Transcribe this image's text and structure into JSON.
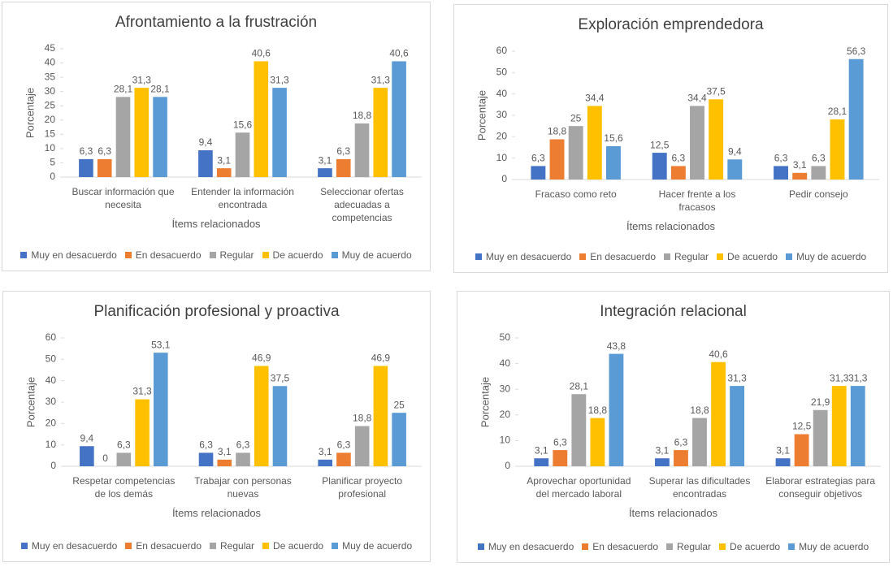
{
  "chart_data": [
    {
      "type": "bar",
      "title": "Afrontamiento a la frustración",
      "y_label": "Porcentaje",
      "x_label": "Ítems relacionados",
      "categories": [
        "Buscar información que necesita",
        "Entender la información encontrada",
        "Seleccionar ofertas adecuadas a competencias"
      ],
      "ylim": [
        0,
        45
      ],
      "yticks": [
        0,
        5,
        10,
        15,
        20,
        25,
        30,
        35,
        40,
        45
      ],
      "legend": "bottom",
      "series": [
        {
          "name": "Muy en desacuerdo",
          "color": "#4472c4",
          "values": [
            6.3,
            9.4,
            3.1
          ],
          "value_labels": [
            "6,3",
            "9,4",
            "3,1"
          ]
        },
        {
          "name": "En desacuerdo",
          "color": "#ed7d31",
          "values": [
            6.3,
            3.1,
            6.3
          ],
          "value_labels": [
            "6,3",
            "3,1",
            "6,3"
          ]
        },
        {
          "name": "Regular",
          "color": "#a5a5a5",
          "values": [
            28.1,
            15.6,
            18.8
          ],
          "value_labels": [
            "28,1",
            "15,6",
            "18,8"
          ]
        },
        {
          "name": "De acuerdo",
          "color": "#ffc000",
          "values": [
            31.3,
            40.6,
            31.3
          ],
          "value_labels": [
            "31,3",
            "40,6",
            "31,3"
          ]
        },
        {
          "name": "Muy de acuerdo",
          "color": "#5b9bd5",
          "values": [
            28.1,
            31.3,
            40.6
          ],
          "value_labels": [
            "28,1",
            "31,3",
            "40,6"
          ]
        }
      ]
    },
    {
      "type": "bar",
      "title": "Exploración emprendedora",
      "y_label": "Porcentaje",
      "x_label": "Ítems relacionados",
      "categories": [
        "Fracaso como reto",
        "Hacer frente a los fracasos",
        "Pedir consejo"
      ],
      "ylim": [
        0,
        60
      ],
      "yticks": [
        0,
        10,
        20,
        30,
        40,
        50,
        60
      ],
      "legend": "bottom",
      "series": [
        {
          "name": "Muy en desacuerdo",
          "color": "#4472c4",
          "values": [
            6.3,
            12.5,
            6.3
          ],
          "value_labels": [
            "6,3",
            "12,5",
            "6,3"
          ]
        },
        {
          "name": "En desacuerdo",
          "color": "#ed7d31",
          "values": [
            18.8,
            6.3,
            3.1
          ],
          "value_labels": [
            "18,8",
            "6,3",
            "3,1"
          ]
        },
        {
          "name": "Regular",
          "color": "#a5a5a5",
          "values": [
            25,
            34.4,
            6.3
          ],
          "value_labels": [
            "25",
            "34,4",
            "6,3"
          ]
        },
        {
          "name": "De acuerdo",
          "color": "#ffc000",
          "values": [
            34.4,
            37.5,
            28.1
          ],
          "value_labels": [
            "34,4",
            "37,5",
            "28,1"
          ]
        },
        {
          "name": "Muy de acuerdo",
          "color": "#5b9bd5",
          "values": [
            15.6,
            9.4,
            56.3
          ],
          "value_labels": [
            "15,6",
            "9,4",
            "56,3"
          ]
        }
      ]
    },
    {
      "type": "bar",
      "title": "Planificación profesional y proactiva",
      "y_label": "Porcentaje",
      "x_label": "Ítems relacionados",
      "categories": [
        "Respetar competencias de los demás",
        "Trabajar con personas nuevas",
        "Planificar proyecto profesional"
      ],
      "ylim": [
        0,
        60
      ],
      "yticks": [
        0,
        10,
        20,
        30,
        40,
        50,
        60
      ],
      "legend": "bottom",
      "series": [
        {
          "name": "Muy en desacuerdo",
          "color": "#4472c4",
          "values": [
            9.4,
            6.3,
            3.1
          ],
          "value_labels": [
            "9,4",
            "6,3",
            "3,1"
          ]
        },
        {
          "name": "En desacuerdo",
          "color": "#ed7d31",
          "values": [
            0,
            3.1,
            6.3
          ],
          "value_labels": [
            "0",
            "3,1",
            "6,3"
          ]
        },
        {
          "name": "Regular",
          "color": "#a5a5a5",
          "values": [
            6.3,
            6.3,
            18.8
          ],
          "value_labels": [
            "6,3",
            "6,3",
            "18,8"
          ]
        },
        {
          "name": "De acuerdo",
          "color": "#ffc000",
          "values": [
            31.3,
            46.9,
            46.9
          ],
          "value_labels": [
            "31,3",
            "46,9",
            "46,9"
          ]
        },
        {
          "name": "Muy de acuerdo",
          "color": "#5b9bd5",
          "values": [
            53.1,
            37.5,
            25
          ],
          "value_labels": [
            "53,1",
            "37,5",
            "25"
          ]
        }
      ]
    },
    {
      "type": "bar",
      "title": "Integración relacional",
      "y_label": "Porcentaje",
      "x_label": "Ítems relacionados",
      "categories": [
        "Aprovechar oportunidad del mercado laboral",
        "Superar las dificultades encontradas",
        "Elaborar estrategias para conseguir objetivos"
      ],
      "ylim": [
        0,
        50
      ],
      "yticks": [
        0,
        10,
        20,
        30,
        40,
        50
      ],
      "legend": "bottom",
      "series": [
        {
          "name": "Muy en desacuerdo",
          "color": "#4472c4",
          "values": [
            3.1,
            3.1,
            3.1
          ],
          "value_labels": [
            "3,1",
            "3,1",
            "3,1"
          ]
        },
        {
          "name": "En desacuerdo",
          "color": "#ed7d31",
          "values": [
            6.3,
            6.3,
            12.5
          ],
          "value_labels": [
            "6,3",
            "6,3",
            "12,5"
          ]
        },
        {
          "name": "Regular",
          "color": "#a5a5a5",
          "values": [
            28.1,
            18.8,
            21.9
          ],
          "value_labels": [
            "28,1",
            "18,8",
            "21,9"
          ]
        },
        {
          "name": "De acuerdo",
          "color": "#ffc000",
          "values": [
            18.8,
            40.6,
            31.3
          ],
          "value_labels": [
            "18,8",
            "40,6",
            "31,3"
          ]
        },
        {
          "name": "Muy de acuerdo",
          "color": "#5b9bd5",
          "values": [
            43.8,
            31.3,
            31.3
          ],
          "value_labels": [
            "43,8",
            "31,3",
            "31,3"
          ]
        }
      ]
    }
  ]
}
